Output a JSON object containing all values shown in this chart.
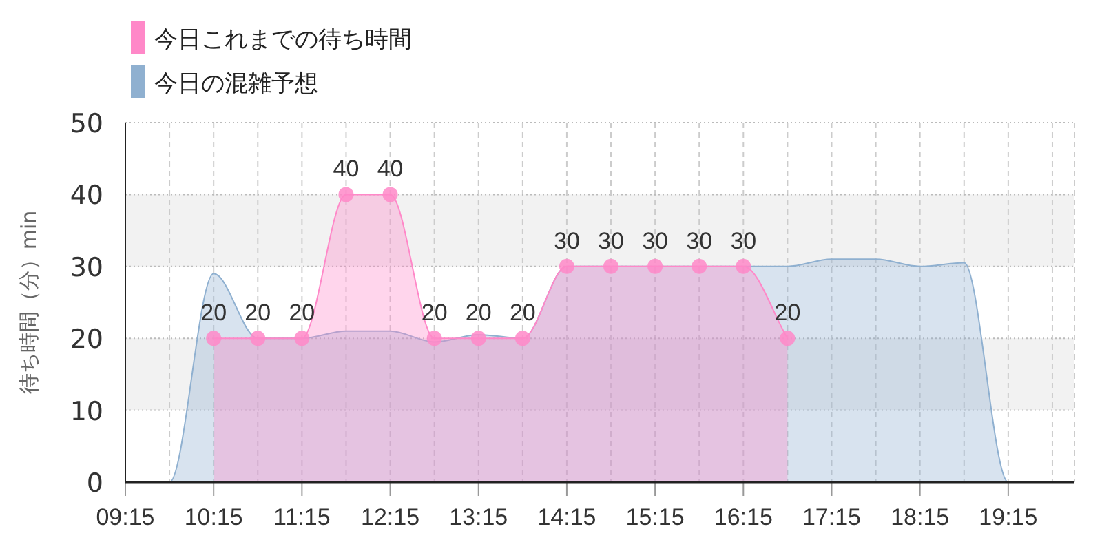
{
  "chart_data": {
    "type": "area",
    "ylabel": "待ち時間（分）min",
    "legend": "top left",
    "grid": true,
    "xlim": [
      9.25,
      20.0
    ],
    "xticks": [
      {
        "value": 9.25,
        "label": "09:15"
      },
      {
        "value": 9.75,
        "label": null
      },
      {
        "value": 10.25,
        "label": "10:15"
      },
      {
        "value": 10.75,
        "label": null
      },
      {
        "value": 11.25,
        "label": "11:15"
      },
      {
        "value": 11.75,
        "label": null
      },
      {
        "value": 12.25,
        "label": "12:15"
      },
      {
        "value": 12.75,
        "label": null
      },
      {
        "value": 13.25,
        "label": "13:15"
      },
      {
        "value": 13.75,
        "label": null
      },
      {
        "value": 14.25,
        "label": "14:15"
      },
      {
        "value": 14.75,
        "label": null
      },
      {
        "value": 15.25,
        "label": "15:15"
      },
      {
        "value": 15.75,
        "label": null
      },
      {
        "value": 16.25,
        "label": "16:15"
      },
      {
        "value": 16.75,
        "label": null
      },
      {
        "value": 17.25,
        "label": "17:15"
      },
      {
        "value": 17.75,
        "label": null
      },
      {
        "value": 18.25,
        "label": "18:15"
      },
      {
        "value": 18.75,
        "label": null
      },
      {
        "value": 19.25,
        "label": "19:15"
      },
      {
        "value": 19.75,
        "label": null
      }
    ],
    "ylim": [
      0,
      50
    ],
    "yticks": [
      0,
      10,
      20,
      30,
      40,
      50
    ],
    "bands": [
      {
        "axis": "y",
        "from": 10,
        "to": 20,
        "color": "#f2f2f2"
      },
      {
        "axis": "y",
        "from": 30,
        "to": 40,
        "color": "#f2f2f2"
      }
    ],
    "series": [
      {
        "name": "今日の混雑予想",
        "color": "#8fb0d0",
        "marker": "none",
        "x": [
          9.25,
          9.75,
          10.25,
          10.75,
          11.25,
          11.75,
          12.25,
          12.75,
          13.25,
          13.75,
          14.25,
          14.75,
          15.25,
          15.75,
          16.25,
          16.75,
          17.25,
          17.75,
          18.25,
          18.75,
          19.25,
          19.75,
          20.0
        ],
        "values": [
          0,
          0,
          29,
          20,
          20,
          21,
          21,
          19.5,
          20.5,
          20,
          30,
          30,
          30,
          30,
          30,
          30,
          31,
          31,
          30,
          30.5,
          0,
          0,
          0
        ]
      },
      {
        "name": "今日これまでの待ち時間",
        "color": "#ff88c8",
        "marker": "circle",
        "x": [
          10.25,
          10.75,
          11.25,
          11.75,
          12.25,
          12.75,
          13.25,
          13.75,
          14.25,
          14.75,
          15.25,
          15.75,
          16.25,
          16.75
        ],
        "values": [
          20,
          20,
          20,
          40,
          40,
          20,
          20,
          20,
          30,
          30,
          30,
          30,
          30,
          20
        ],
        "value_labels": [
          "20",
          "20",
          "20",
          "40",
          "40",
          "20",
          "20",
          "20",
          "30",
          "30",
          "30",
          "30",
          "30",
          "20"
        ]
      }
    ]
  }
}
